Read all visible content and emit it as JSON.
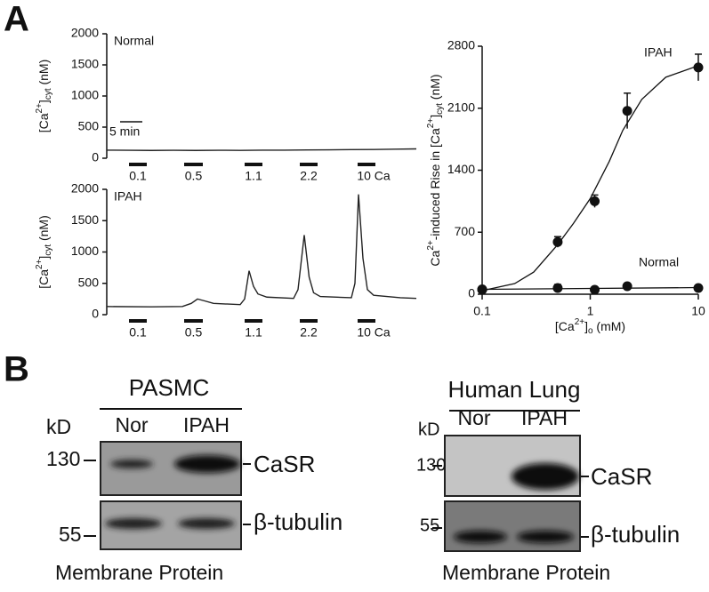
{
  "panel_labels": [
    "A",
    "B"
  ],
  "chart_data": [
    {
      "type": "line",
      "title": "Normal",
      "ylabel": [
        "[Ca",
        "2+",
        "]",
        "cyt",
        " (nM)"
      ],
      "ylim": [
        0,
        2000
      ],
      "yticks": [
        0,
        500,
        1000,
        1500,
        2000
      ],
      "xlim": [
        0,
        70
      ],
      "scale_bar": {
        "label": "5 min",
        "length": 5
      },
      "stimuli": [
        {
          "label": "0.1",
          "start": 5,
          "end": 9
        },
        {
          "label": "0.5",
          "start": 17.4,
          "end": 21.6
        },
        {
          "label": "1.1",
          "start": 31,
          "end": 35
        },
        {
          "label": "2.2",
          "start": 43.4,
          "end": 47.4
        },
        {
          "label": "10 Ca",
          "start": 56.4,
          "end": 60.4
        }
      ],
      "series": [
        {
          "color": "#222222",
          "x": [
            0,
            5,
            10,
            15,
            20,
            25,
            30,
            35,
            40,
            45,
            50,
            55,
            60,
            65,
            69.6
          ],
          "values": [
            130,
            128,
            125,
            127,
            125,
            128,
            126,
            130,
            130,
            133,
            135,
            138,
            140,
            145,
            150
          ]
        }
      ]
    },
    {
      "type": "line",
      "title": "IPAH",
      "ylabel": [
        "[Ca",
        "2+",
        "]",
        "cyt",
        " (nM)"
      ],
      "ylim": [
        0,
        2000
      ],
      "yticks": [
        0,
        500,
        1000,
        1500,
        2000
      ],
      "xlim": [
        0,
        70
      ],
      "stimuli": [
        {
          "label": "0.1",
          "start": 5,
          "end": 9
        },
        {
          "label": "0.5",
          "start": 17.4,
          "end": 21.6
        },
        {
          "label": "1.1",
          "start": 31,
          "end": 35
        },
        {
          "label": "2.2",
          "start": 43.4,
          "end": 47.4
        },
        {
          "label": "10 Ca",
          "start": 56.4,
          "end": 60.4
        }
      ],
      "series": [
        {
          "color": "#222222",
          "x": [
            0,
            10,
            17,
            19,
            20.4,
            22,
            24,
            30,
            31,
            32,
            33,
            34,
            36,
            42,
            43,
            44.4,
            45.5,
            46.5,
            48,
            55,
            55.8,
            56.6,
            57.6,
            58.6,
            60,
            66,
            69.6
          ],
          "values": [
            130,
            125,
            130,
            180,
            250,
            220,
            180,
            160,
            250,
            700,
            450,
            330,
            280,
            260,
            400,
            1270,
            600,
            350,
            290,
            270,
            500,
            1920,
            900,
            400,
            310,
            270,
            260
          ]
        }
      ]
    },
    {
      "type": "scatter",
      "log_x": true,
      "ylabel": [
        "Ca",
        "2+",
        "-induced Rise in [Ca",
        "2+",
        "]",
        "cyt",
        " (nM)"
      ],
      "xlabel": [
        "[Ca",
        "2+",
        "]",
        "o",
        " (mM)"
      ],
      "xlim": [
        0.1,
        10
      ],
      "xticks": [
        0.1,
        1,
        10
      ],
      "ylim": [
        0,
        2800
      ],
      "yticks": [
        0,
        700,
        1400,
        2100,
        2800
      ],
      "series": [
        {
          "name": "IPAH",
          "color": "#111111",
          "x": [
            0.1,
            0.5,
            1.1,
            2.2,
            10
          ],
          "values": [
            55,
            590,
            1050,
            2070,
            2560
          ],
          "errors": [
            30,
            60,
            70,
            200,
            150
          ],
          "fit": {
            "x": [
              0.1,
              0.2,
              0.3,
              0.5,
              0.7,
              1,
              1.5,
              2,
              3,
              5,
              10
            ],
            "values": [
              40,
              120,
              250,
              560,
              800,
              1080,
              1500,
              1850,
              2200,
              2450,
              2580
            ]
          }
        },
        {
          "name": "Normal",
          "color": "#111111",
          "x": [
            0.1,
            0.5,
            1.1,
            2.2,
            10
          ],
          "values": [
            50,
            70,
            50,
            90,
            70
          ],
          "errors": [
            20,
            40,
            20,
            25,
            20
          ],
          "fit": {
            "x": [
              0.1,
              10
            ],
            "values": [
              55,
              75
            ]
          }
        }
      ]
    }
  ],
  "blots": [
    {
      "title": "PASMC",
      "unit": "kD",
      "lanes": [
        "Nor",
        "IPAH"
      ],
      "markers": [
        130,
        55
      ],
      "proteins": [
        "CaSR",
        "β-tubulin"
      ],
      "caption": "Membrane Protein"
    },
    {
      "title": "Human Lung",
      "unit": "kD",
      "lanes": [
        "Nor",
        "IPAH"
      ],
      "markers": [
        130,
        55
      ],
      "proteins": [
        "CaSR",
        "β-tubulin"
      ],
      "caption": "Membrane Protein"
    }
  ]
}
